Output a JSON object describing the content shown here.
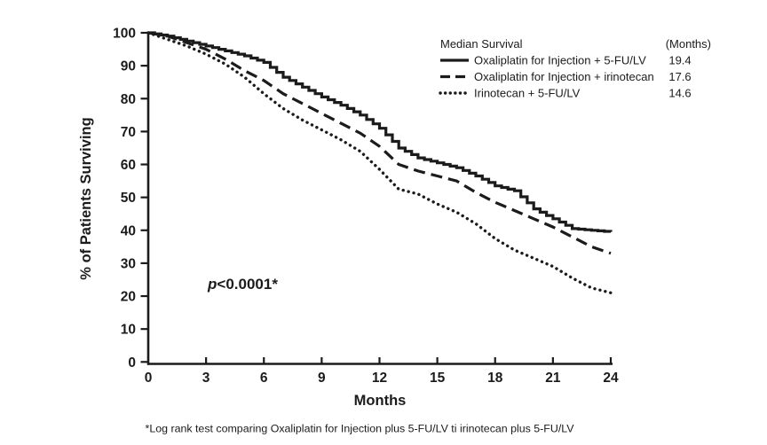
{
  "chart_data": {
    "type": "line",
    "subtype": "kaplan-meier-survival",
    "title": "",
    "xlabel": "Months",
    "ylabel": "% of Patients Surviving",
    "xlim": [
      0,
      24
    ],
    "ylim": [
      0,
      100
    ],
    "xticks": [
      0,
      3,
      6,
      9,
      12,
      15,
      18,
      21,
      24
    ],
    "yticks": [
      0,
      10,
      20,
      30,
      40,
      50,
      60,
      70,
      80,
      90,
      100
    ],
    "grid": false,
    "x": [
      0,
      1,
      2,
      3,
      4,
      5,
      6,
      7,
      8,
      9,
      10,
      11,
      12,
      13,
      14,
      15,
      16,
      17,
      18,
      19,
      20,
      21,
      22,
      23,
      24
    ],
    "series": [
      {
        "name": "Oxaliplatin for Injection + 5-FU/LV",
        "median_months": "19.4",
        "line_style": "solid",
        "values": [
          100,
          99,
          97.5,
          96,
          94.5,
          93,
          91,
          86.5,
          83.5,
          80.5,
          78,
          75,
          71,
          65,
          62,
          60.5,
          59,
          56.5,
          53.5,
          52,
          46.5,
          43.5,
          40.5,
          40,
          39.5
        ]
      },
      {
        "name": "Oxaliplatin for Injection + irinotecan",
        "median_months": "17.6",
        "line_style": "dashed",
        "values": [
          100,
          99,
          97,
          95,
          92,
          88.5,
          85.5,
          81.5,
          78.5,
          75.5,
          72.5,
          69.5,
          65.5,
          60,
          58,
          56.5,
          55,
          51.5,
          48.5,
          46,
          43.5,
          41,
          38,
          35,
          33
        ]
      },
      {
        "name": "Irinotecan + 5-FU/LV",
        "median_months": "14.6",
        "line_style": "dotted",
        "values": [
          100,
          98,
          96,
          93.5,
          90.5,
          86.5,
          81.5,
          77,
          73.5,
          70.5,
          67.5,
          64,
          58.5,
          52.5,
          51,
          48,
          45.5,
          42,
          37.5,
          34,
          31.5,
          29,
          25.5,
          22.5,
          21
        ]
      }
    ],
    "legend": {
      "position": "top-right",
      "header": "Median Survival",
      "unit_header": "(Months)"
    },
    "annotations": {
      "p_label": "p",
      "p_rest": "<0.0001*"
    }
  },
  "footnote": "*Log rank test comparing Oxaliplatin for Injection plus 5-FU/LV ti irinotecan plus 5-FU/LV",
  "colors": {
    "line": "#1b1b1b",
    "text": "#1b1b1b",
    "background": "#ffffff"
  }
}
